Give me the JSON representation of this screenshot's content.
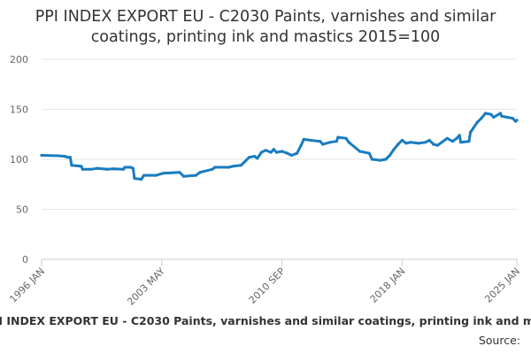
{
  "chart_data": {
    "type": "line",
    "title": "PPI INDEX EXPORT EU - C2030 Paints, varnishes and similar coatings, printing ink and mastics 2015=100",
    "xlabel": "",
    "ylabel": "",
    "ylim": [
      0,
      200
    ],
    "yticks": [
      0,
      50,
      100,
      150,
      200
    ],
    "xticks": [
      "1996 JAN",
      "2003 MAY",
      "2010 SEP",
      "2018 JAN",
      "2025 JAN"
    ],
    "x_range": [
      "1996-01",
      "2025-01"
    ],
    "grid": true,
    "legend_position": "bottom",
    "series": [
      {
        "name": "PPI INDEX EXPORT EU - C2030 Paints, varnishes and similar coatings, printing ink and mastics",
        "color": "#1a7cbf",
        "points": [
          [
            "1996-01",
            104
          ],
          [
            "1997-01",
            103.5
          ],
          [
            "1997-06",
            103
          ],
          [
            "1997-08",
            102
          ],
          [
            "1997-10",
            102
          ],
          [
            "1997-11",
            94
          ],
          [
            "1998-06",
            93
          ],
          [
            "1998-07",
            90
          ],
          [
            "1999-01",
            90
          ],
          [
            "1999-06",
            91
          ],
          [
            "2000-01",
            90
          ],
          [
            "2000-06",
            90.5
          ],
          [
            "2001-01",
            90
          ],
          [
            "2001-02",
            92
          ],
          [
            "2001-06",
            92
          ],
          [
            "2001-08",
            91
          ],
          [
            "2001-09",
            81
          ],
          [
            "2002-02",
            80
          ],
          [
            "2002-04",
            84
          ],
          [
            "2003-01",
            84
          ],
          [
            "2003-06",
            86
          ],
          [
            "2004-06",
            87
          ],
          [
            "2004-09",
            83
          ],
          [
            "2005-06",
            84
          ],
          [
            "2005-09",
            87
          ],
          [
            "2006-06",
            90
          ],
          [
            "2006-08",
            92
          ],
          [
            "2007-06",
            92
          ],
          [
            "2007-09",
            93
          ],
          [
            "2008-03",
            94
          ],
          [
            "2008-06",
            98
          ],
          [
            "2008-09",
            102
          ],
          [
            "2009-01",
            103
          ],
          [
            "2009-03",
            101
          ],
          [
            "2009-06",
            107
          ],
          [
            "2009-09",
            109
          ],
          [
            "2010-01",
            107
          ],
          [
            "2010-03",
            110
          ],
          [
            "2010-05",
            107
          ],
          [
            "2010-09",
            108
          ],
          [
            "2011-01",
            106
          ],
          [
            "2011-04",
            104
          ],
          [
            "2011-08",
            106
          ],
          [
            "2011-11",
            114
          ],
          [
            "2012-01",
            120
          ],
          [
            "2012-06",
            119
          ],
          [
            "2013-01",
            118
          ],
          [
            "2013-03",
            115
          ],
          [
            "2013-08",
            117
          ],
          [
            "2014-01",
            118
          ],
          [
            "2014-02",
            122
          ],
          [
            "2014-08",
            121
          ],
          [
            "2014-10",
            117
          ],
          [
            "2015-06",
            108
          ],
          [
            "2016-01",
            106
          ],
          [
            "2016-03",
            100
          ],
          [
            "2016-09",
            99
          ],
          [
            "2017-01",
            100
          ],
          [
            "2017-04",
            104
          ],
          [
            "2017-07",
            110
          ],
          [
            "2017-10",
            115
          ],
          [
            "2018-01",
            119
          ],
          [
            "2018-04",
            116
          ],
          [
            "2018-07",
            117
          ],
          [
            "2019-01",
            116
          ],
          [
            "2019-06",
            117
          ],
          [
            "2019-09",
            119
          ],
          [
            "2019-12",
            115
          ],
          [
            "2020-03",
            114
          ],
          [
            "2020-06",
            117
          ],
          [
            "2020-10",
            121
          ],
          [
            "2021-02",
            118
          ],
          [
            "2021-05",
            121
          ],
          [
            "2021-07",
            124
          ],
          [
            "2021-08",
            117
          ],
          [
            "2022-02",
            118
          ],
          [
            "2022-03",
            127
          ],
          [
            "2022-05",
            131
          ],
          [
            "2022-08",
            137
          ],
          [
            "2022-11",
            141
          ],
          [
            "2023-02",
            146
          ],
          [
            "2023-06",
            145
          ],
          [
            "2023-08",
            142
          ],
          [
            "2024-01",
            146
          ],
          [
            "2024-02",
            143
          ],
          [
            "2024-06",
            142
          ],
          [
            "2024-10",
            141
          ],
          [
            "2024-12",
            138
          ],
          [
            "2025-01",
            139
          ]
        ]
      }
    ]
  },
  "source_label": "Source:"
}
